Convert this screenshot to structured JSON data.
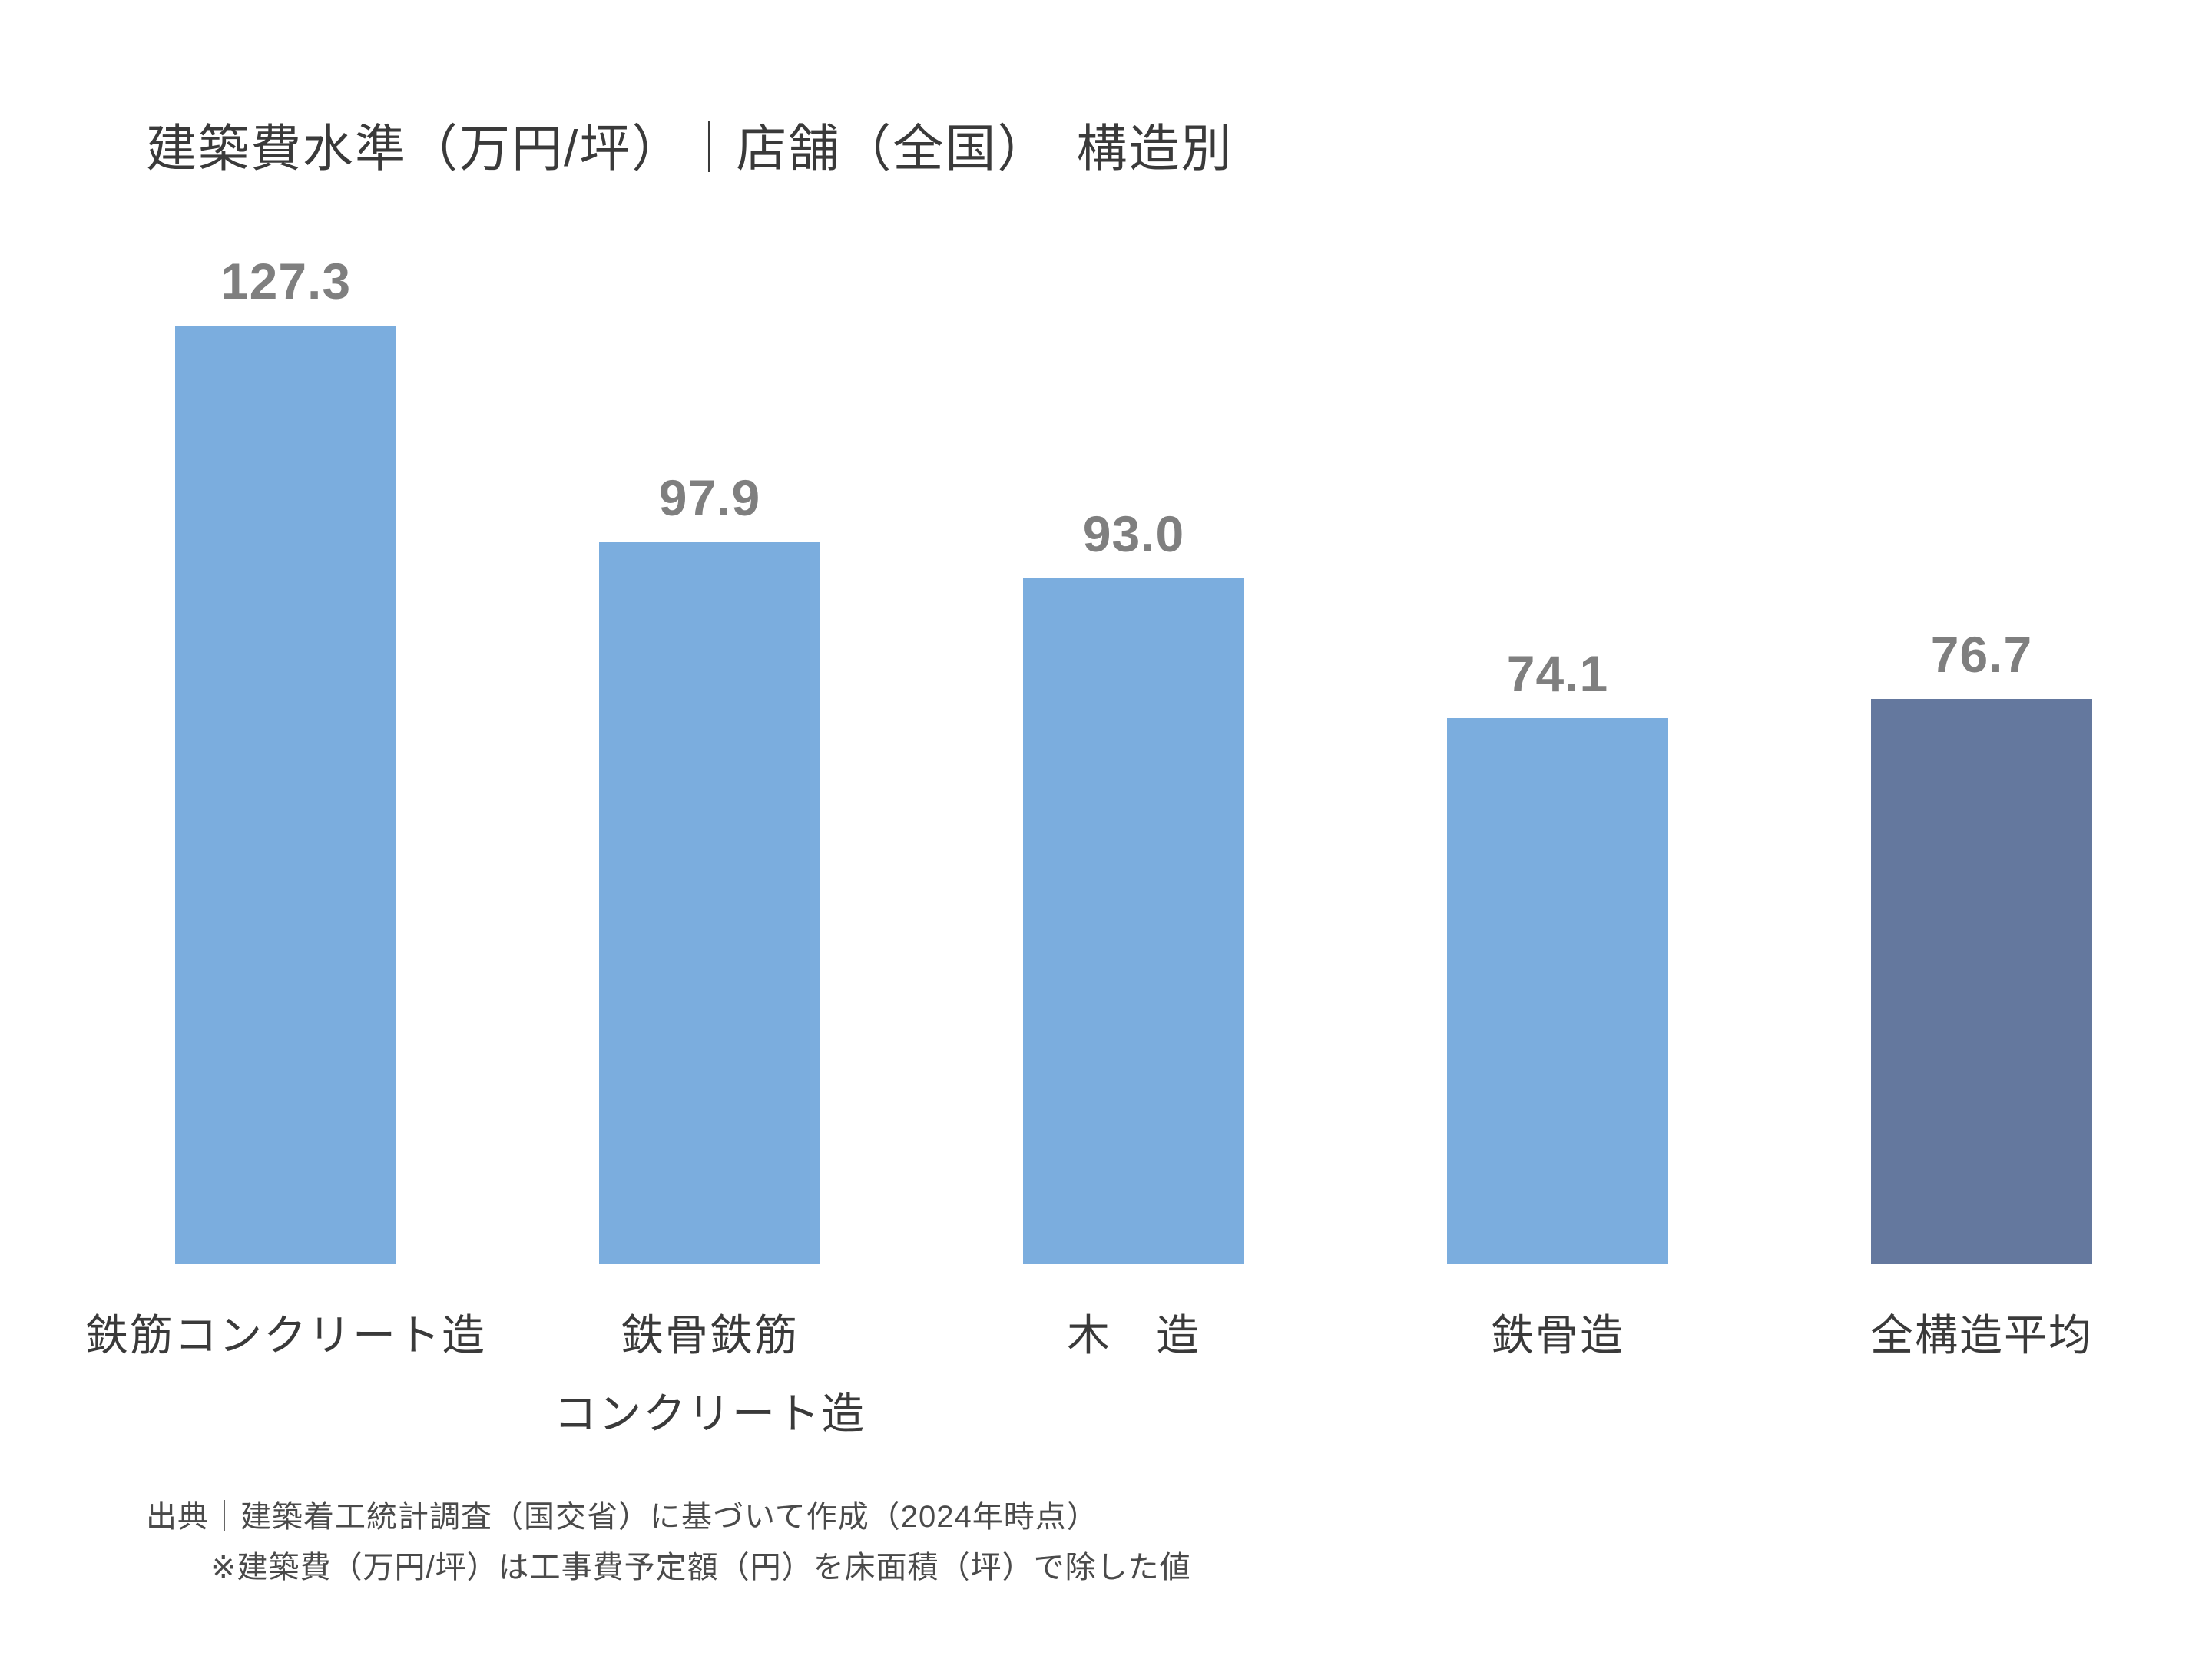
{
  "chart_data": {
    "type": "bar",
    "title": "建築費水準（万円/坪）｜店舗（全国）　構造別",
    "categories": [
      "鉄筋コンクリート造",
      "鉄骨鉄筋\nコンクリート造",
      "木　造",
      "鉄骨造",
      "全構造平均"
    ],
    "values": [
      127.3,
      97.9,
      93.0,
      74.1,
      76.7
    ],
    "value_labels": [
      "127.3",
      "97.9",
      "93.0",
      "74.1",
      "76.7"
    ],
    "bar_colors": [
      "#7BADDE",
      "#7BADDE",
      "#7BADDE",
      "#7BADDE",
      "#64789E"
    ],
    "accent_color": "#7BADDE",
    "average_bar_color": "#64789E",
    "data_label_color": "#7F7F7F",
    "xlabel": "",
    "ylabel": "",
    "ylim": [
      0,
      132
    ],
    "grid": false,
    "legend": false,
    "axis_lines": false
  },
  "footer": {
    "source_line1": "出典｜建築着工統計調査（国交省）に基づいて作成（2024年時点）",
    "source_line2": "※建築費（万円/坪）は工事費予定額（円）を床面積（坪）で除した値"
  }
}
